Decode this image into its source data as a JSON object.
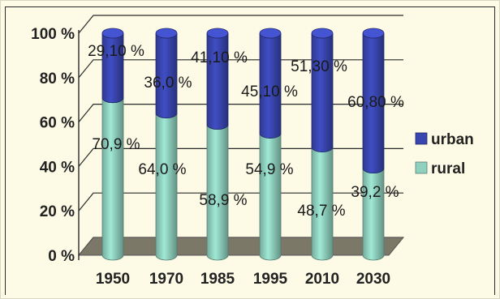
{
  "chart_data": {
    "type": "bar",
    "stacked": true,
    "categories": [
      "1950",
      "1970",
      "1985",
      "1995",
      "2010",
      "2030"
    ],
    "series": [
      {
        "name": "rural",
        "values": [
          70.9,
          64.0,
          58.9,
          54.9,
          48.7,
          39.2
        ],
        "color": "#8fd0be",
        "labels": [
          "70,9 %",
          "64,0 %",
          "58,9 %",
          "54,9 %",
          "48,7 %",
          "39,2 %"
        ]
      },
      {
        "name": "urban",
        "values": [
          29.1,
          36.0,
          41.1,
          45.1,
          51.3,
          60.8
        ],
        "color": "#3946b0",
        "labels": [
          "29,10 %",
          "36,0 %",
          "41,10 %",
          "45,10 %",
          "51,30 %",
          "60,80 %"
        ]
      }
    ],
    "yticks": [
      "0 %",
      "20 %",
      "40 %",
      "60 %",
      "80 %",
      "100 %"
    ],
    "ylim": [
      0,
      100
    ],
    "grid": true,
    "legend_position": "right"
  }
}
